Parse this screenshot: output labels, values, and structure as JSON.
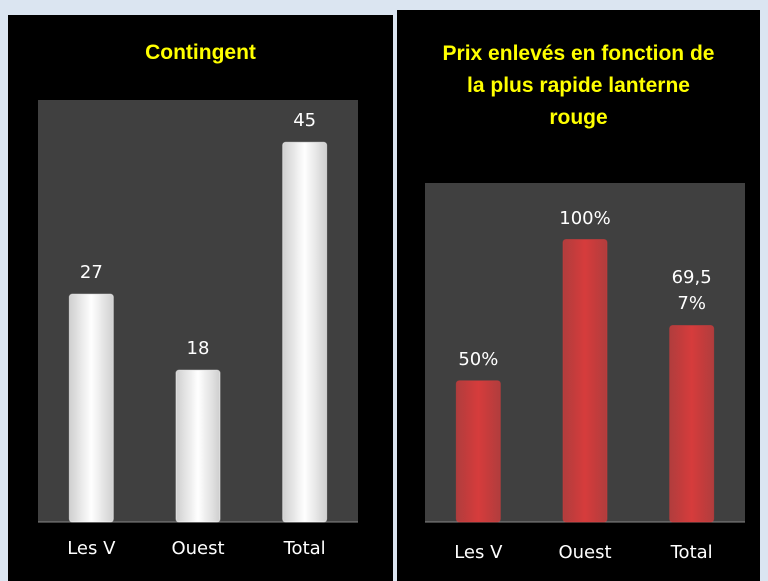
{
  "chart_data": [
    {
      "type": "bar",
      "title": "Contingent",
      "categories": [
        "Les V",
        "Ouest",
        "Total"
      ],
      "values": [
        27,
        18,
        45
      ],
      "color": "#ffffff",
      "ylim": [
        0,
        50
      ]
    },
    {
      "type": "bar",
      "title": "Prix enlevés en fonction de la plus rapide lanterne rouge",
      "categories": [
        "Les V",
        "Ouest",
        "Total"
      ],
      "values": [
        50,
        100,
        69.57
      ],
      "value_labels": [
        "50%",
        "100%",
        "69,57%"
      ],
      "color": "#d63c3c",
      "ylim": [
        0,
        120
      ]
    }
  ]
}
